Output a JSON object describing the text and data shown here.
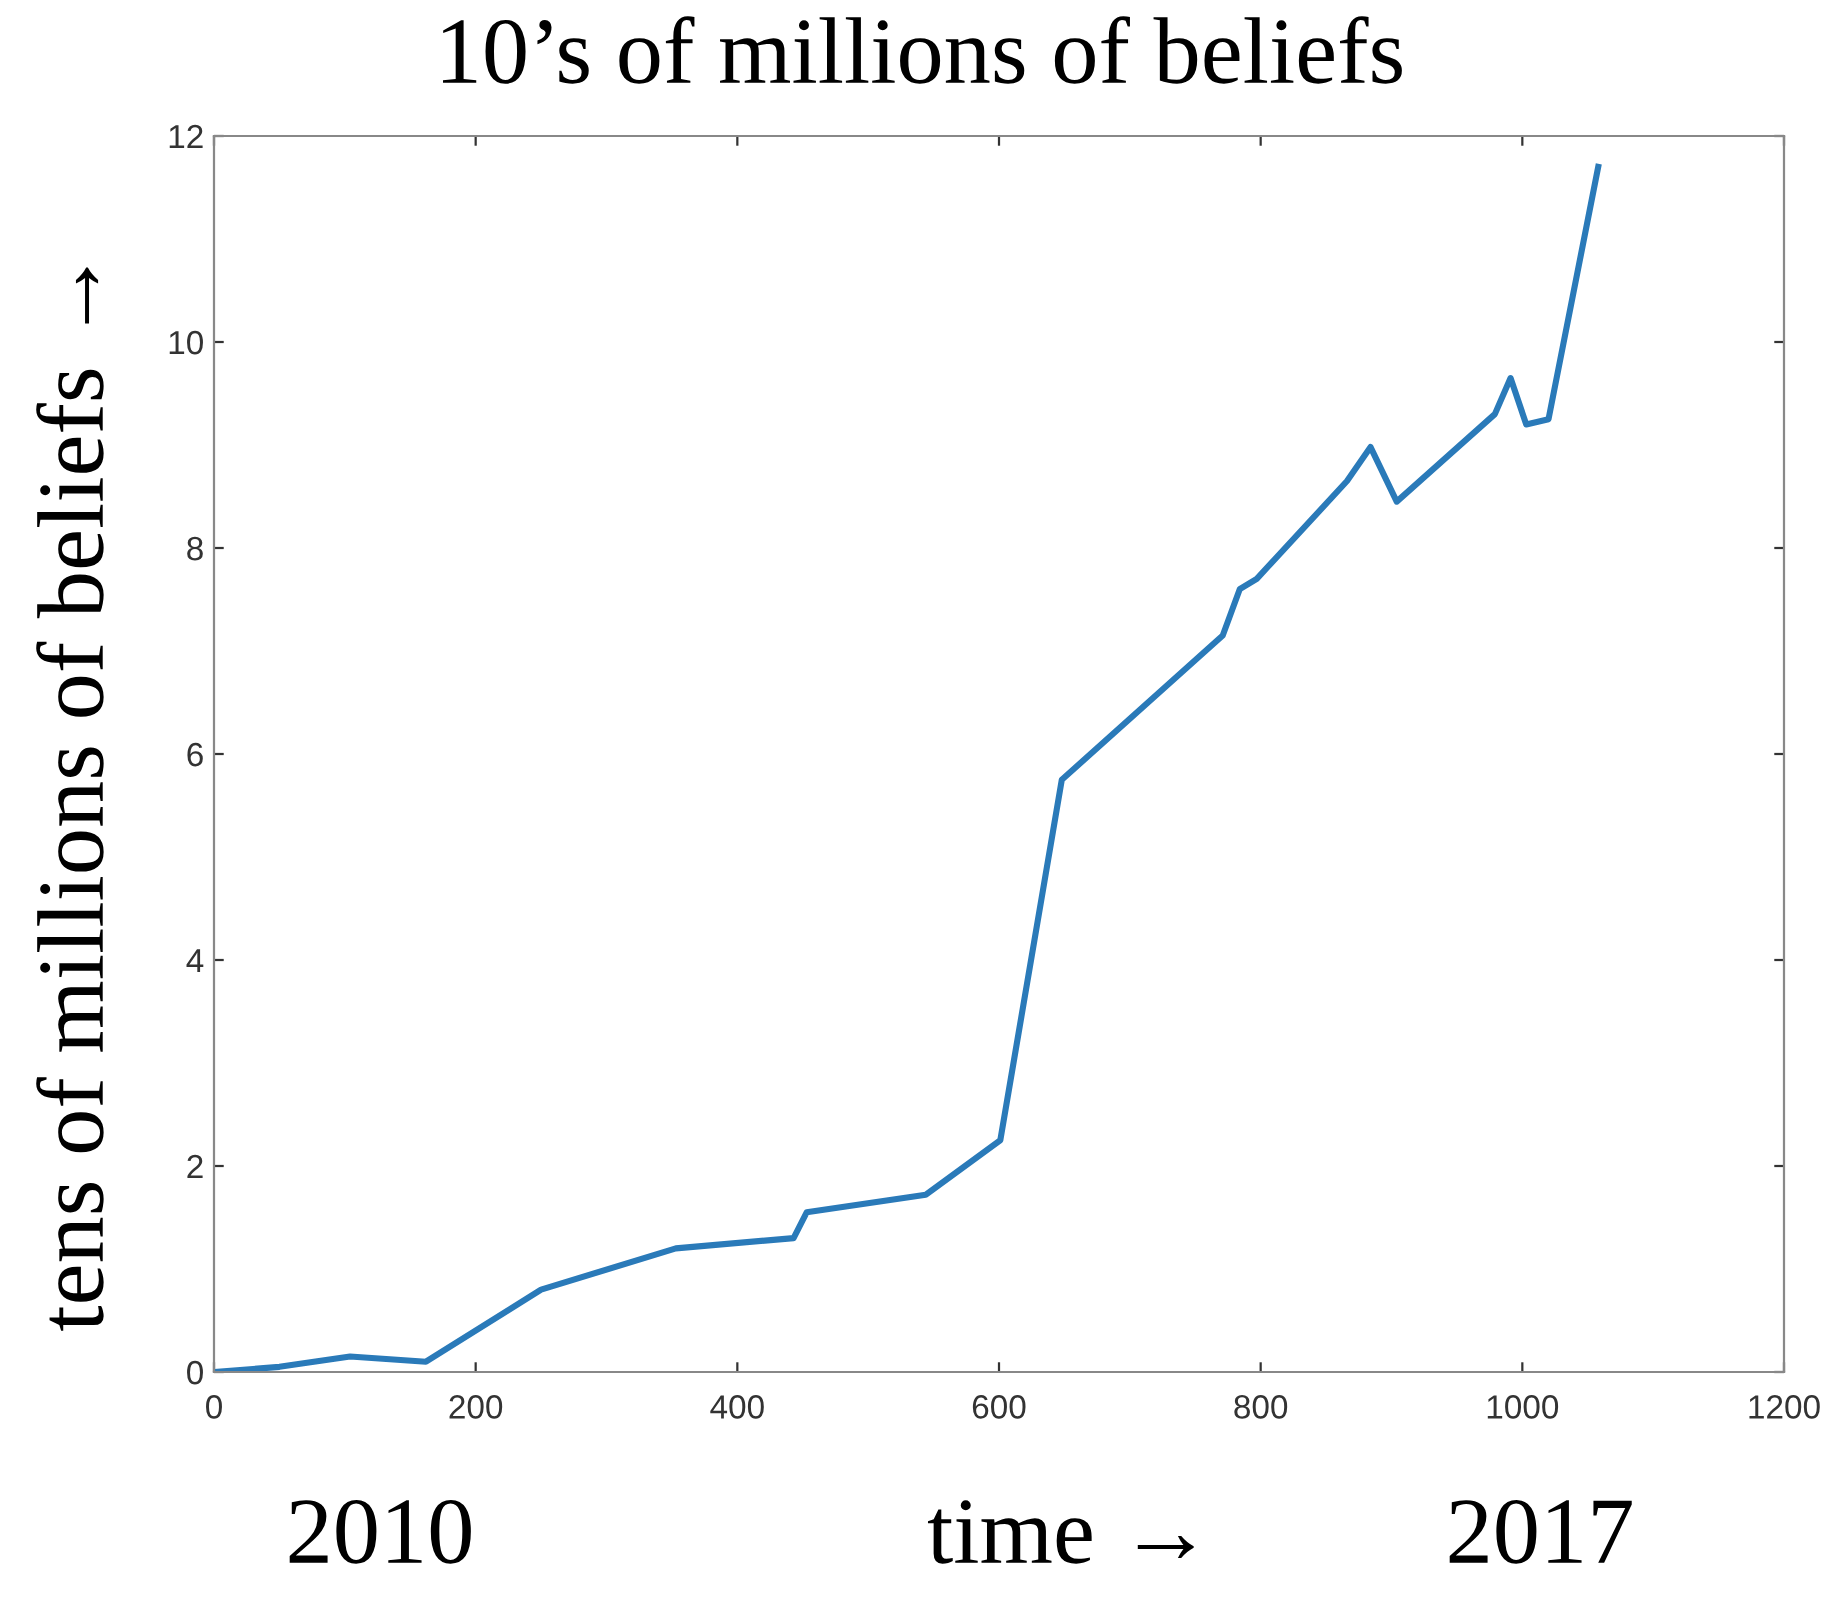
{
  "chart_data": {
    "type": "line",
    "title": "10’s of millions of beliefs",
    "ylabel": "tens of millions of beliefs →",
    "xlabel": "time →",
    "annotations": [
      "2010",
      "2017"
    ],
    "x": [
      0,
      50,
      104,
      162,
      250,
      353,
      443,
      453,
      544,
      601,
      648,
      771,
      784,
      797,
      866,
      884,
      904,
      979,
      991,
      1003,
      1020,
      1058
    ],
    "series": [
      {
        "color": "#2a7ab9",
        "values": [
          0,
          0.05,
          0.15,
          0.1,
          0.8,
          1.2,
          1.3,
          1.55,
          1.72,
          2.25,
          5.75,
          7.15,
          7.6,
          7.7,
          8.65,
          8.98,
          8.45,
          9.3,
          9.65,
          9.2,
          9.25,
          11.7
        ]
      }
    ],
    "xlim": [
      0,
      1200
    ],
    "xticks": [
      0,
      200,
      400,
      600,
      800,
      1000,
      1200
    ],
    "ylim": [
      0,
      12
    ],
    "yticks": [
      0,
      2,
      4,
      6,
      8,
      10,
      12
    ],
    "grid": false,
    "legend": false,
    "line_style": "solid",
    "marker": "none"
  }
}
